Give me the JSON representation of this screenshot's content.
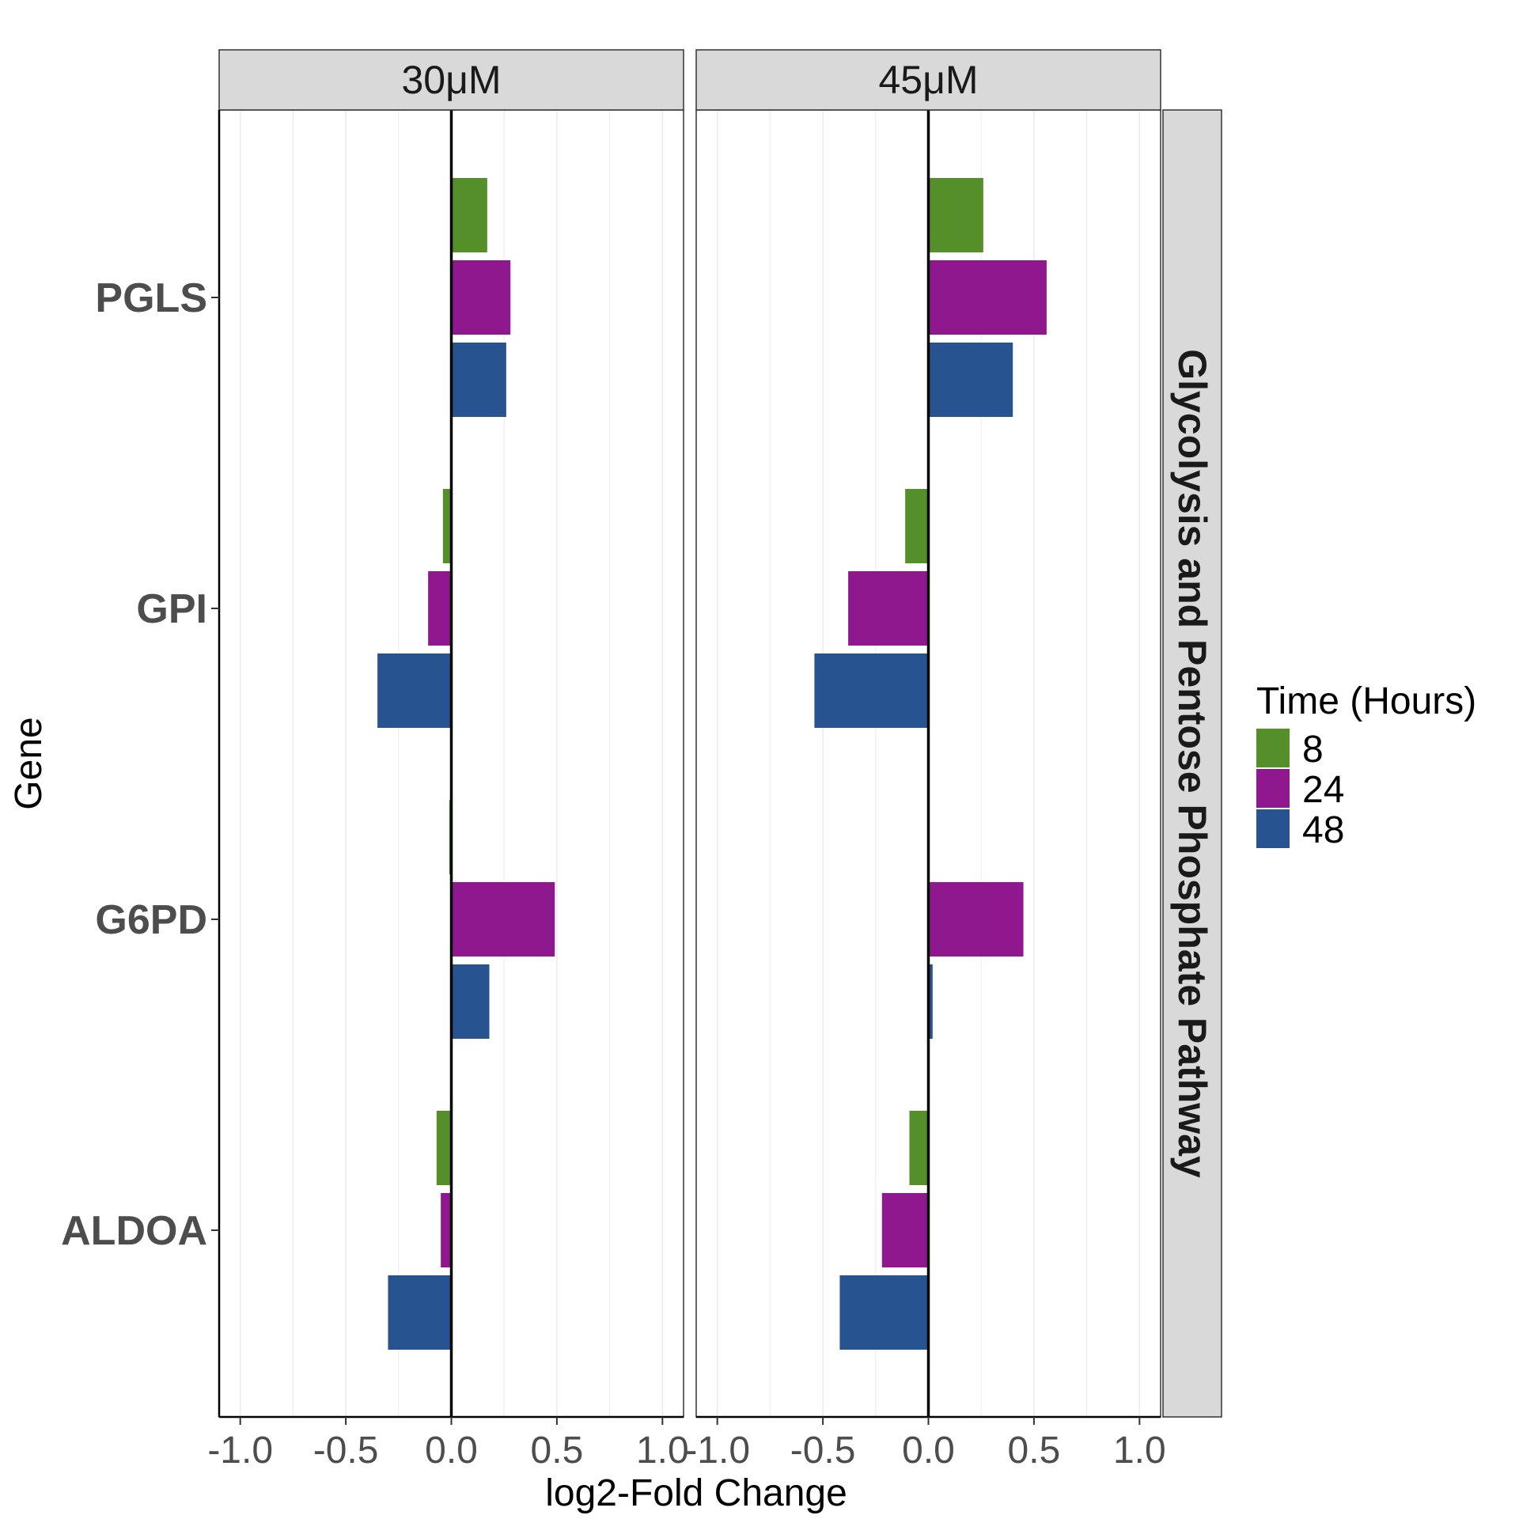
{
  "chart_data": {
    "type": "bar",
    "orientation": "horizontal",
    "xlabel": "log2-Fold Change",
    "ylabel": "Gene",
    "xlim": [
      -1.1,
      1.1
    ],
    "x_ticks": [
      -1.0,
      -0.5,
      0.0,
      0.5,
      1.0
    ],
    "x_tick_labels": [
      "-1.0",
      "-0.5",
      "0.0",
      "0.5",
      "1.0"
    ],
    "categories": [
      "PGLS",
      "GPI",
      "G6PD",
      "ALDOA"
    ],
    "row_facet": "Glycolysis and Pentose Phosphate Pathway",
    "legend": {
      "title": "Time (Hours)",
      "placement": "right",
      "entries": [
        {
          "label": "8",
          "color": "#548f29"
        },
        {
          "label": "24",
          "color": "#90188f"
        },
        {
          "label": "48",
          "color": "#275391"
        }
      ]
    },
    "panels": [
      {
        "label": "30μM",
        "series": [
          {
            "name": "8",
            "color": "#548f29",
            "values": [
              0.17,
              -0.04,
              -0.01,
              -0.07
            ]
          },
          {
            "name": "24",
            "color": "#90188f",
            "values": [
              0.28,
              -0.11,
              0.49,
              -0.05
            ]
          },
          {
            "name": "48",
            "color": "#275391",
            "values": [
              0.26,
              -0.35,
              0.18,
              -0.3
            ]
          }
        ]
      },
      {
        "label": "45μM",
        "series": [
          {
            "name": "8",
            "color": "#548f29",
            "values": [
              0.26,
              -0.11,
              0.0,
              -0.09
            ]
          },
          {
            "name": "24",
            "color": "#90188f",
            "values": [
              0.56,
              -0.38,
              0.45,
              -0.22
            ]
          },
          {
            "name": "48",
            "color": "#275391",
            "values": [
              0.4,
              -0.54,
              0.02,
              -0.42
            ]
          }
        ]
      }
    ],
    "grid": true,
    "zero_line": true
  }
}
